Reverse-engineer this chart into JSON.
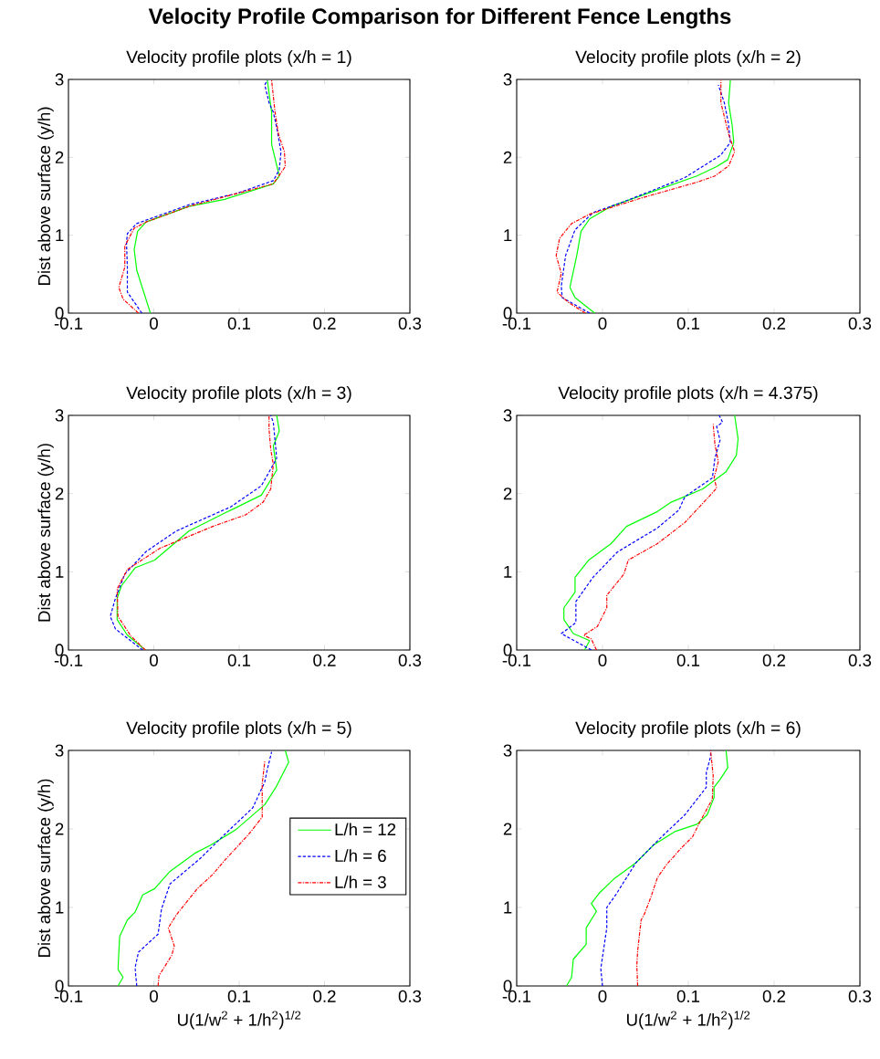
{
  "chart_data": [
    {
      "type": "line",
      "title": "Velocity profile plots (x/h = 1)",
      "ylabel": "Dist above surface (y/h)",
      "annotations": [
        "Velocity Profile Comparison for Different Fence Lengths"
      ],
      "xlim": [
        -0.1,
        0.3
      ],
      "ylim": [
        0,
        3
      ],
      "xticks": [
        -0.1,
        0,
        0.1,
        0.2,
        0.3
      ],
      "yticks": [
        0,
        1,
        2,
        3
      ],
      "series": [
        {
          "color": "#00ff00",
          "line_style": "solid",
          "x": [
            -0.004,
            -0.02,
            -0.023,
            -0.019,
            -0.009,
            0.041,
            0.083,
            0.14,
            0.147,
            0.138,
            0.138,
            0.133
          ],
          "values": [
            0,
            0.55,
            0.82,
            1.05,
            1.17,
            1.37,
            1.46,
            1.66,
            1.76,
            2.17,
            2.58,
            2.99
          ]
        },
        {
          "color": "#0000ff",
          "line_style": "dashed",
          "x": [
            -0.014,
            -0.031,
            -0.031,
            -0.032,
            -0.031,
            -0.02,
            0.041,
            0.098,
            0.14,
            0.147,
            0.149,
            0.144,
            0.14,
            0.135,
            0.13,
            0.133
          ],
          "values": [
            0,
            0.27,
            0.59,
            0.9,
            1.02,
            1.15,
            1.39,
            1.54,
            1.7,
            1.84,
            2.07,
            2.38,
            2.58,
            2.7,
            2.93,
            2.99
          ]
        },
        {
          "color": "#ff0000",
          "line_style": "dashdot",
          "x": [
            -0.018,
            -0.036,
            -0.041,
            -0.034,
            -0.034,
            -0.023,
            -0.009,
            0.041,
            0.14,
            0.154,
            0.153,
            0.146,
            0.142,
            0.138
          ],
          "values": [
            0,
            0.18,
            0.33,
            0.59,
            0.86,
            1.09,
            1.17,
            1.37,
            1.66,
            1.88,
            2.07,
            2.3,
            2.58,
            2.99
          ]
        }
      ]
    },
    {
      "type": "line",
      "title": "Velocity profile plots (x/h = 2)",
      "xlim": [
        -0.1,
        0.3
      ],
      "ylim": [
        0,
        3
      ],
      "xticks": [
        -0.1,
        0,
        0.1,
        0.2,
        0.3
      ],
      "yticks": [
        0,
        1,
        2,
        3
      ],
      "series": [
        {
          "color": "#00ff00",
          "line_style": "solid",
          "x": [
            -0.009,
            -0.032,
            -0.038,
            -0.03,
            -0.025,
            -0.015,
            0.01,
            0.053,
            0.11,
            0.133,
            0.146,
            0.153,
            0.151,
            0.147,
            0.149
          ],
          "values": [
            0,
            0.2,
            0.33,
            0.74,
            1.05,
            1.21,
            1.37,
            1.54,
            1.76,
            1.88,
            1.97,
            2.19,
            2.42,
            2.7,
            2.99
          ]
        },
        {
          "color": "#0000ff",
          "line_style": "dashed",
          "x": [
            -0.015,
            -0.047,
            -0.048,
            -0.043,
            -0.032,
            -0.011,
            0.025,
            0.096,
            0.138,
            0.149,
            0.147,
            0.142,
            0.135
          ],
          "values": [
            0,
            0.2,
            0.35,
            0.74,
            1.07,
            1.29,
            1.43,
            1.74,
            2.03,
            2.19,
            2.42,
            2.7,
            2.93
          ]
        },
        {
          "color": "#ff0000",
          "line_style": "dashdot",
          "x": [
            -0.02,
            -0.04,
            -0.053,
            -0.048,
            -0.054,
            -0.05,
            -0.036,
            -0.015,
            0.046,
            0.11,
            0.131,
            0.147,
            0.154,
            0.147,
            0.138,
            0.138
          ],
          "values": [
            0,
            0.14,
            0.27,
            0.51,
            0.74,
            0.96,
            1.15,
            1.27,
            1.48,
            1.68,
            1.76,
            1.89,
            2.07,
            2.3,
            2.7,
            2.99
          ]
        }
      ]
    },
    {
      "type": "line",
      "title": "Velocity profile plots (x/h = 3)",
      "ylabel": "Dist above surface (y/h)",
      "xlim": [
        -0.1,
        0.3
      ],
      "ylim": [
        0,
        3
      ],
      "xticks": [
        -0.1,
        0,
        0.1,
        0.2,
        0.3
      ],
      "yticks": [
        0,
        1,
        2,
        3
      ],
      "series": [
        {
          "color": "#00ff00",
          "line_style": "solid",
          "x": [
            -0.01,
            -0.031,
            -0.043,
            -0.043,
            -0.038,
            -0.022,
            0.001,
            0.041,
            0.083,
            0.126,
            0.144,
            0.14,
            0.147,
            0.144
          ],
          "values": [
            0,
            0.19,
            0.39,
            0.66,
            0.82,
            1.05,
            1.15,
            1.52,
            1.75,
            1.98,
            2.3,
            2.61,
            2.8,
            3.0
          ]
        },
        {
          "color": "#0000ff",
          "line_style": "dashed",
          "x": [
            -0.013,
            -0.045,
            -0.051,
            -0.045,
            -0.034,
            -0.009,
            0.026,
            0.09,
            0.126,
            0.144,
            0.14,
            0.137
          ],
          "values": [
            0,
            0.27,
            0.43,
            0.66,
            0.97,
            1.26,
            1.52,
            1.83,
            2.1,
            2.45,
            2.91,
            3.0
          ]
        },
        {
          "color": "#ff0000",
          "line_style": "dashdot",
          "x": [
            -0.01,
            -0.027,
            -0.042,
            -0.043,
            -0.031,
            0.007,
            0.069,
            0.108,
            0.128,
            0.137,
            0.14,
            0.137,
            0.135,
            0.135
          ],
          "values": [
            0,
            0.18,
            0.43,
            0.78,
            1.03,
            1.3,
            1.58,
            1.73,
            1.89,
            2.06,
            2.37,
            2.57,
            2.82,
            3.0
          ]
        }
      ]
    },
    {
      "type": "line",
      "title": "Velocity profile plots (x/h = 4.375)",
      "xlim": [
        -0.1,
        0.3
      ],
      "ylim": [
        0,
        3
      ],
      "xticks": [
        -0.1,
        0,
        0.1,
        0.2,
        0.3
      ],
      "yticks": [
        0,
        1,
        2,
        3
      ],
      "series": [
        {
          "color": "#00ff00",
          "line_style": "solid",
          "x": [
            -0.021,
            -0.015,
            -0.034,
            -0.045,
            -0.045,
            -0.032,
            -0.032,
            -0.016,
            0.01,
            0.028,
            0.064,
            0.08,
            0.117,
            0.144,
            0.156,
            0.158,
            0.154
          ],
          "values": [
            0,
            0.12,
            0.21,
            0.39,
            0.54,
            0.74,
            0.93,
            1.15,
            1.36,
            1.58,
            1.77,
            1.89,
            2.06,
            2.28,
            2.49,
            2.7,
            3.0
          ]
        },
        {
          "color": "#0000ff",
          "line_style": "dashed",
          "x": [
            -0.013,
            -0.048,
            -0.031,
            -0.031,
            -0.011,
            0.017,
            0.064,
            0.089,
            0.096,
            0.128,
            0.131,
            0.137,
            0.133,
            0.14,
            0.136
          ],
          "values": [
            0,
            0.21,
            0.35,
            0.62,
            0.93,
            1.25,
            1.56,
            1.79,
            1.96,
            2.2,
            2.45,
            2.68,
            2.86,
            2.91,
            3.0
          ]
        },
        {
          "color": "#ff0000",
          "line_style": "dashdot",
          "x": [
            -0.007,
            -0.013,
            -0.022,
            -0.006,
            0.005,
            0.005,
            0.025,
            0.03,
            0.064,
            0.096,
            0.124,
            0.133,
            0.13,
            0.135,
            0.131,
            0.129
          ],
          "values": [
            0,
            0.14,
            0.19,
            0.3,
            0.54,
            0.7,
            0.97,
            1.15,
            1.36,
            1.63,
            1.96,
            2.07,
            2.2,
            2.41,
            2.63,
            2.89
          ]
        }
      ]
    },
    {
      "type": "line",
      "title": "Velocity profile plots (x/h = 5)",
      "xlabel": "U(1/w$^{2}$ + 1/h$^{2}$)$^{1/2}$",
      "ylabel": "Dist above surface (y/h)",
      "legend": "top right",
      "xlim": [
        -0.1,
        0.3
      ],
      "ylim": [
        0,
        3
      ],
      "xticks": [
        -0.1,
        0,
        0.1,
        0.2,
        0.3
      ],
      "yticks": [
        0,
        1,
        2,
        3
      ],
      "series": [
        {
          "name": "L/h = 12",
          "color": "#00ff00",
          "line_style": "solid",
          "x": [
            -0.042,
            -0.036,
            -0.042,
            -0.04,
            -0.031,
            -0.022,
            -0.013,
            0.001,
            0.019,
            0.048,
            0.066,
            0.096,
            0.13,
            0.143,
            0.158,
            0.154
          ],
          "values": [
            0,
            0.11,
            0.21,
            0.63,
            0.84,
            0.94,
            1.16,
            1.24,
            1.46,
            1.69,
            1.79,
            1.99,
            2.31,
            2.53,
            2.85,
            3.0
          ]
        },
        {
          "name": "L/h = 6",
          "color": "#0000ff",
          "line_style": "dashed",
          "x": [
            -0.02,
            -0.022,
            -0.018,
            0.005,
            0.009,
            0.019,
            0.055,
            0.083,
            0.116,
            0.13,
            0.133,
            0.138
          ],
          "values": [
            0,
            0.23,
            0.43,
            0.66,
            0.98,
            1.3,
            1.63,
            1.93,
            2.27,
            2.6,
            2.76,
            2.98
          ]
        },
        {
          "name": "L/h = 3",
          "color": "#ff0000",
          "line_style": "dashdot",
          "x": [
            0.005,
            0.006,
            0.021,
            0.024,
            0.017,
            0.026,
            0.051,
            0.069,
            0.083,
            0.111,
            0.127,
            0.127,
            0.13
          ],
          "values": [
            0,
            0.13,
            0.39,
            0.51,
            0.74,
            0.9,
            1.24,
            1.42,
            1.6,
            1.93,
            2.15,
            2.58,
            2.86
          ]
        }
      ]
    },
    {
      "type": "line",
      "title": "Velocity profile plots (x/h = 6)",
      "xlabel": "U(1/w$^{2}$ + 1/h$^{2}$)$^{1/2}$",
      "xlim": [
        -0.1,
        0.3
      ],
      "ylim": [
        0,
        3
      ],
      "xticks": [
        -0.1,
        0,
        0.1,
        0.2,
        0.3
      ],
      "yticks": [
        0,
        1,
        2,
        3
      ],
      "series": [
        {
          "color": "#00ff00",
          "line_style": "solid",
          "x": [
            -0.042,
            -0.036,
            -0.034,
            -0.019,
            -0.019,
            -0.007,
            -0.013,
            -0.004,
            0.014,
            0.039,
            0.06,
            0.085,
            0.11,
            0.122,
            0.13,
            0.13,
            0.137,
            0.146,
            0.144
          ],
          "values": [
            0,
            0.11,
            0.34,
            0.53,
            0.74,
            0.95,
            1.05,
            1.18,
            1.37,
            1.57,
            1.8,
            1.97,
            2.06,
            2.18,
            2.4,
            2.53,
            2.63,
            2.78,
            3.0
          ]
        },
        {
          "color": "#0000ff",
          "line_style": "dashed",
          "x": [
            0.0,
            -0.002,
            0.005,
            0.005,
            0.016,
            0.039,
            0.067,
            0.096,
            0.121,
            0.121,
            0.126,
            0.126
          ],
          "values": [
            0,
            0.22,
            0.74,
            1.0,
            1.17,
            1.57,
            1.88,
            2.18,
            2.53,
            2.72,
            2.92,
            3.0
          ]
        },
        {
          "color": "#ff0000",
          "line_style": "dashdot",
          "x": [
            0.041,
            0.04,
            0.041,
            0.045,
            0.049,
            0.057,
            0.064,
            0.075,
            0.092,
            0.105,
            0.115,
            0.128,
            0.129,
            0.126
          ],
          "values": [
            0,
            0.26,
            0.45,
            0.84,
            0.92,
            1.15,
            1.38,
            1.55,
            1.76,
            1.9,
            2.12,
            2.38,
            2.68,
            3.0
          ]
        }
      ]
    }
  ]
}
